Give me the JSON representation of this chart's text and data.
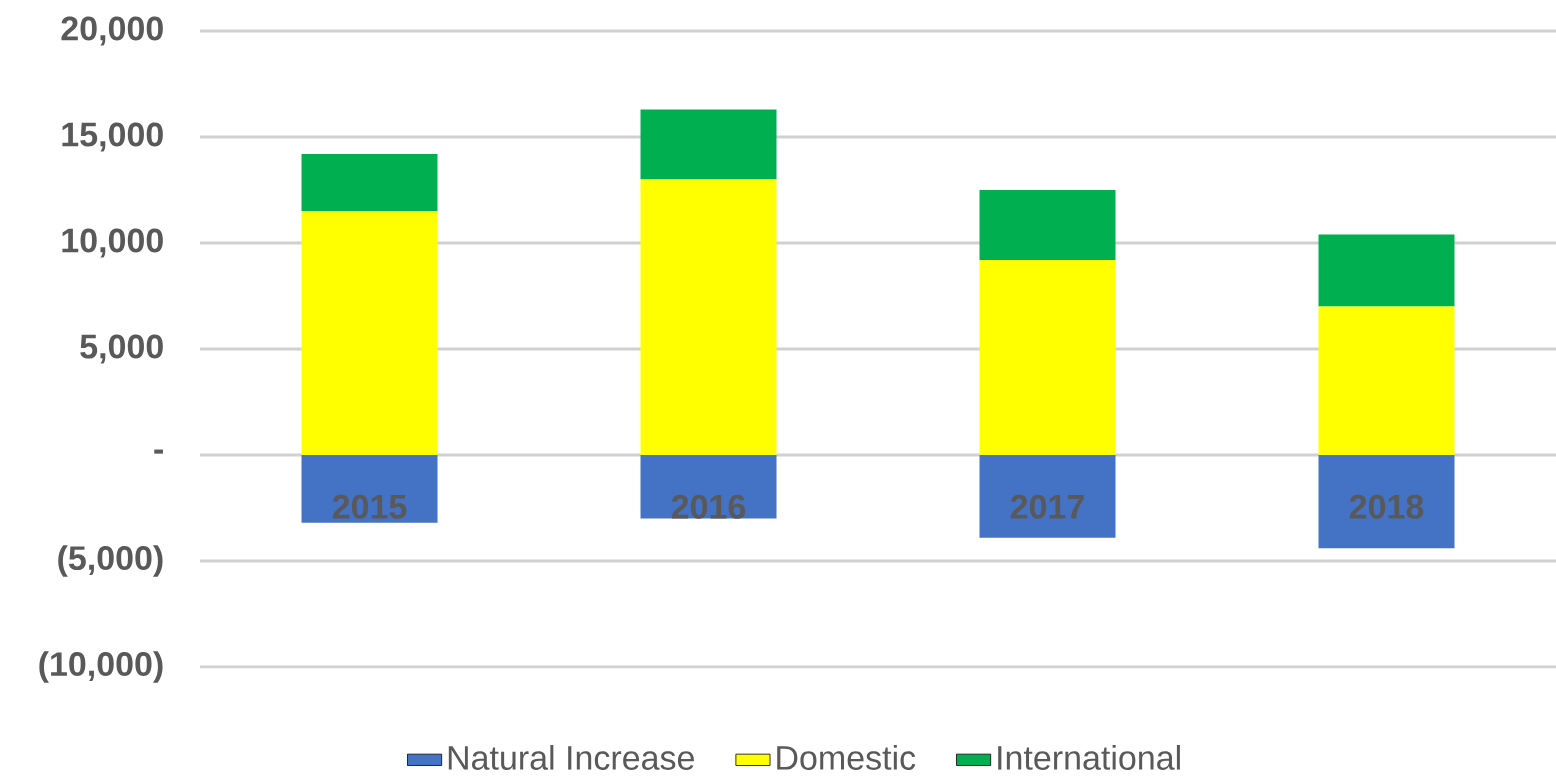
{
  "chart_data": {
    "type": "bar",
    "stacked": true,
    "categories": [
      "2015",
      "2016",
      "2017",
      "2018"
    ],
    "series": [
      {
        "name": "Natural Increase",
        "color": "#4472c4",
        "values": [
          -3200,
          -3000,
          -3900,
          -4400
        ]
      },
      {
        "name": "Domestic",
        "color": "#ffff00",
        "values": [
          11500,
          13000,
          9200,
          7000
        ]
      },
      {
        "name": "International",
        "color": "#00b050",
        "values": [
          2700,
          3300,
          3300,
          3400
        ]
      }
    ],
    "ylim": [
      -10000,
      20000
    ],
    "yticks": [
      {
        "value": -10000,
        "label": "(10,000)"
      },
      {
        "value": -5000,
        "label": "(5,000)"
      },
      {
        "value": 0,
        "label": "-"
      },
      {
        "value": 5000,
        "label": "5,000"
      },
      {
        "value": 10000,
        "label": "10,000"
      },
      {
        "value": 15000,
        "label": "15,000"
      },
      {
        "value": 20000,
        "label": "20,000"
      }
    ],
    "grid": "y",
    "legend": "bottom"
  }
}
